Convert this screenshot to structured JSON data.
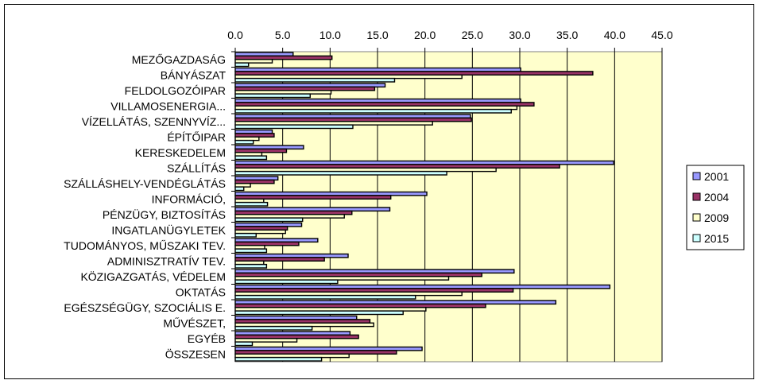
{
  "chart_data": {
    "type": "bar",
    "orientation": "horizontal",
    "title": "",
    "xlabel": "",
    "ylabel": "",
    "xlim": [
      0,
      45
    ],
    "ticks": [
      "0.0",
      "5.0",
      "10.0",
      "15.0",
      "20.0",
      "25.0",
      "30.0",
      "35.0",
      "40.0",
      "45.0"
    ],
    "grid": true,
    "legend_position": "right",
    "categories": [
      "MEZŐGAZDASÁG",
      "BÁNYÁSZAT",
      "FELDOLGOZÓIPAR",
      "VILLAMOSENERGIA...",
      "VÍZELLÁTÁS, SZENNYVÍZ...",
      "ÉPÍTŐIPAR",
      "KERESKEDELEM",
      "SZÁLLÍTÁS",
      "SZÁLLÁSHELY-VENDÉGLÁTÁS",
      "INFORMÁCIÓ,",
      "PÉNZÜGY, BIZTOSÍTÁS",
      "INGATLANÜGYLETEK",
      "TUDOMÁNYOS, MŰSZAKI TEV.",
      "ADMINISZTRATÍV TEV.",
      "KÖZIGAZGATÁS, VÉDELEM",
      "OKTATÁS",
      "EGÉSZSÉGÜGY, SZOCIÁLIS E.",
      "MŰVÉSZET,",
      "EGYÉB",
      "ÖSSZESEN"
    ],
    "series": [
      {
        "name": "2001",
        "color": "#9999ff",
        "values": [
          6.1,
          30.1,
          15.8,
          30.1,
          24.8,
          3.9,
          7.2,
          39.9,
          4.5,
          20.2,
          16.3,
          7.0,
          8.7,
          11.9,
          29.4,
          39.5,
          33.8,
          12.8,
          12.1,
          19.7
        ]
      },
      {
        "name": "2004",
        "color": "#993366",
        "values": [
          10.2,
          37.7,
          14.7,
          31.5,
          24.9,
          4.1,
          5.4,
          34.2,
          4.1,
          16.4,
          12.3,
          5.5,
          6.7,
          9.4,
          26.0,
          29.3,
          26.4,
          14.2,
          13.0,
          17.0
        ]
      },
      {
        "name": "2009",
        "color": "#ffffcc",
        "values": [
          3.9,
          23.9,
          10.1,
          29.7,
          20.8,
          2.5,
          2.8,
          27.5,
          1.6,
          3.0,
          11.5,
          5.3,
          3.1,
          3.0,
          22.5,
          23.9,
          20.1,
          14.6,
          6.5,
          12.0
        ]
      },
      {
        "name": "2015",
        "color": "#ccffff",
        "values": [
          1.4,
          16.8,
          7.9,
          29.1,
          12.4,
          1.9,
          3.3,
          22.3,
          0.9,
          3.4,
          7.1,
          2.2,
          3.3,
          3.3,
          10.8,
          19.0,
          17.7,
          8.1,
          1.8,
          9.1
        ]
      }
    ],
    "plot_background": "#ffffcc"
  }
}
